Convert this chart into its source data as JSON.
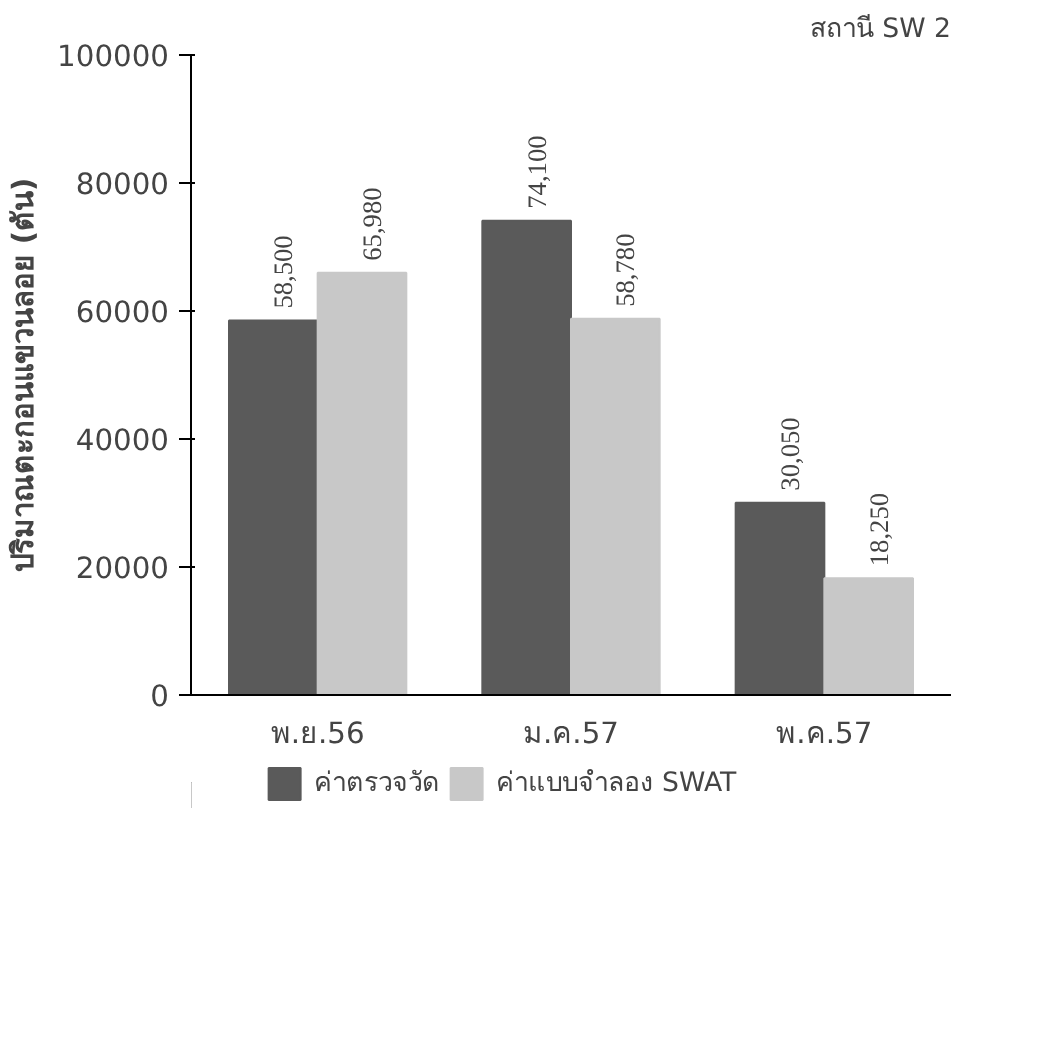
{
  "chart_data": {
    "type": "bar",
    "title": "สถานี SW 2",
    "ylabel": "ปริมาณตะกอนแขวนลอย (ตัน)",
    "categories": [
      "พ.ย.56",
      "ม.ค.57",
      "พ.ค.57"
    ],
    "series": [
      {
        "name": "ค่าตรวจวัด",
        "color": "#5a5a5a",
        "values": [
          58500,
          74100,
          30050
        ],
        "value_labels": [
          "58,500",
          "74,100",
          "30,050"
        ]
      },
      {
        "name": "ค่าแบบจำลอง SWAT",
        "color": "#c8c8c8",
        "values": [
          65980,
          58780,
          18250
        ],
        "value_labels": [
          "65,980",
          "58,780",
          "18,250"
        ]
      }
    ],
    "ylim": [
      0,
      100000
    ],
    "yticks": [
      0,
      20000,
      40000,
      60000,
      80000,
      100000
    ],
    "grid": false,
    "legend": "bottom"
  }
}
